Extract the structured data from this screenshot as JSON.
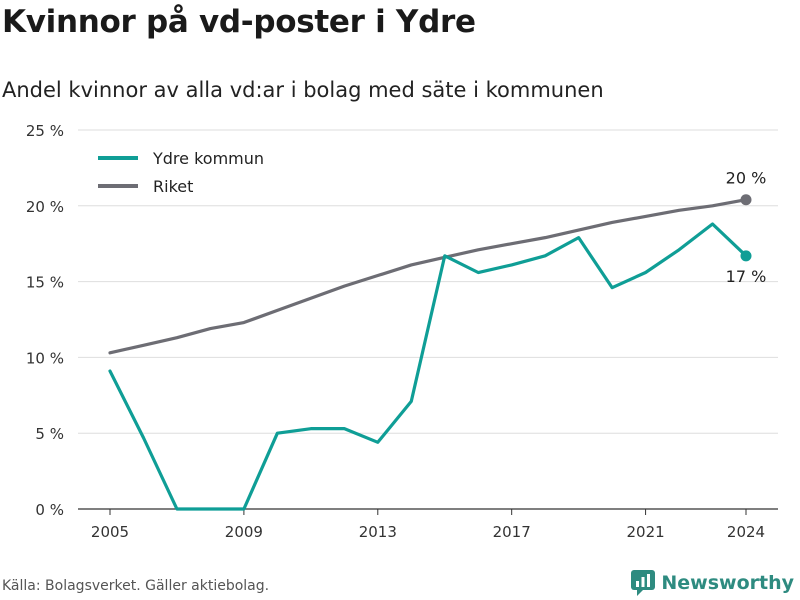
{
  "title": "Kvinnor på vd-poster i Ydre",
  "subtitle": "Andel kvinnor av alla vd:ar i bolag med säte i kommunen",
  "source": "Källa: Bolagsverket. Gäller aktiebolag.",
  "brand": {
    "name": "Newsworthy",
    "icon": "newsworthy-logo-icon"
  },
  "chart_data": {
    "type": "line",
    "title": "Kvinnor på vd-poster i Ydre",
    "subtitle": "Andel kvinnor av alla vd:ar i bolag med säte i kommunen",
    "x": [
      2005,
      2006,
      2007,
      2008,
      2009,
      2010,
      2011,
      2012,
      2013,
      2014,
      2015,
      2016,
      2017,
      2018,
      2019,
      2020,
      2021,
      2022,
      2023,
      2024
    ],
    "x_ticks": [
      {
        "value": 2005,
        "label": "2005"
      },
      {
        "value": 2009,
        "label": "2009"
      },
      {
        "value": 2013,
        "label": "2013"
      },
      {
        "value": 2017,
        "label": "2017"
      },
      {
        "value": 2021,
        "label": "2021"
      },
      {
        "value": 2024,
        "label": "2024"
      }
    ],
    "xlim": [
      2005,
      2024
    ],
    "ylim": [
      0,
      25
    ],
    "y_ticks": [
      {
        "value": 0,
        "label": "0 %"
      },
      {
        "value": 5,
        "label": "5 %"
      },
      {
        "value": 10,
        "label": "10 %"
      },
      {
        "value": 15,
        "label": "15 %"
      },
      {
        "value": 20,
        "label": "20 %"
      },
      {
        "value": 25,
        "label": "25 %"
      }
    ],
    "grid": true,
    "legend_position": "top-left",
    "series": [
      {
        "name": "Ydre kommun",
        "color": "#0f9e96",
        "values": [
          9.1,
          4.7,
          0,
          0,
          0,
          5.0,
          5.3,
          5.3,
          4.4,
          7.1,
          16.7,
          15.6,
          16.1,
          16.7,
          17.9,
          14.6,
          15.6,
          17.1,
          18.8,
          16.7
        ],
        "end_label": "17 %"
      },
      {
        "name": "Riket",
        "color": "#6d6d74",
        "values": [
          10.3,
          10.8,
          11.3,
          11.9,
          12.3,
          13.1,
          13.9,
          14.7,
          15.4,
          16.1,
          16.6,
          17.1,
          17.5,
          17.9,
          18.4,
          18.9,
          19.3,
          19.7,
          20.0,
          20.4
        ],
        "end_label": "20 %"
      }
    ]
  }
}
